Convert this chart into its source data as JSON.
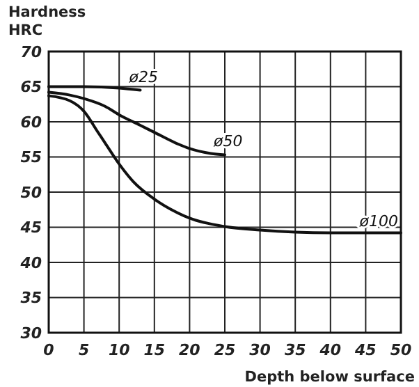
{
  "chart_data": {
    "type": "line",
    "ylabel": "Hardness\nHRC",
    "xlabel": "Depth below surface",
    "xlim": [
      0,
      50
    ],
    "ylim": [
      30,
      70
    ],
    "xticks": [
      0,
      5,
      10,
      15,
      20,
      25,
      30,
      35,
      40,
      45,
      50
    ],
    "yticks": [
      30,
      35,
      40,
      45,
      50,
      55,
      60,
      65,
      70
    ],
    "grid": true,
    "marker": "none",
    "line_style": "solid",
    "series": [
      {
        "name": "ø25",
        "color": "#111111",
        "x": [
          0,
          5,
          10,
          13
        ],
        "values": [
          65,
          65,
          64.8,
          64.5
        ]
      },
      {
        "name": "ø50",
        "color": "#111111",
        "x": [
          0,
          3,
          5,
          8,
          10,
          13,
          15,
          18,
          20,
          23,
          25
        ],
        "values": [
          64.2,
          63.8,
          63.3,
          62.2,
          61,
          59.5,
          58.5,
          57,
          56.2,
          55.5,
          55.3
        ]
      },
      {
        "name": "ø100",
        "color": "#111111",
        "x": [
          0,
          3,
          5,
          7,
          8,
          10,
          12,
          15,
          18,
          20,
          25,
          30,
          35,
          40,
          45,
          50
        ],
        "values": [
          63.7,
          63,
          61.5,
          58.5,
          57,
          54,
          51.5,
          49,
          47.2,
          46.3,
          45.1,
          44.6,
          44.3,
          44.2,
          44.2,
          44.2
        ]
      }
    ]
  }
}
